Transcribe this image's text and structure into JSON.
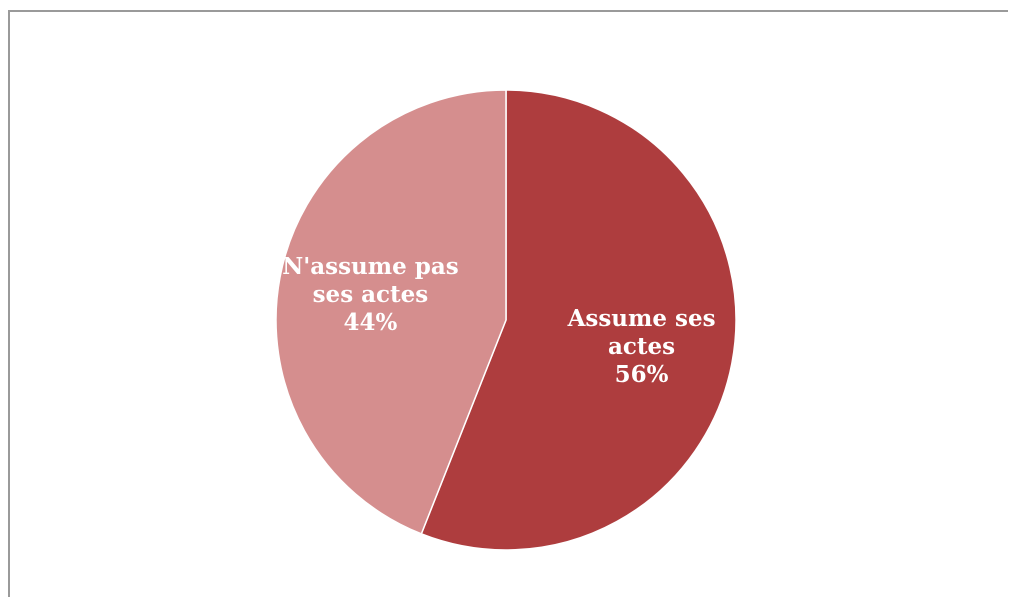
{
  "chart_data": {
    "type": "pie",
    "start_angle_deg": 0,
    "direction": "clockwise",
    "slices": [
      {
        "label_lines": [
          "Assume ses",
          "actes"
        ],
        "value": 56,
        "value_label": "56%",
        "color": "#ae3d3e"
      },
      {
        "label_lines": [
          "N'assume pas",
          "ses actes"
        ],
        "value": 44,
        "value_label": "44%",
        "color": "#d58e8e"
      }
    ]
  }
}
